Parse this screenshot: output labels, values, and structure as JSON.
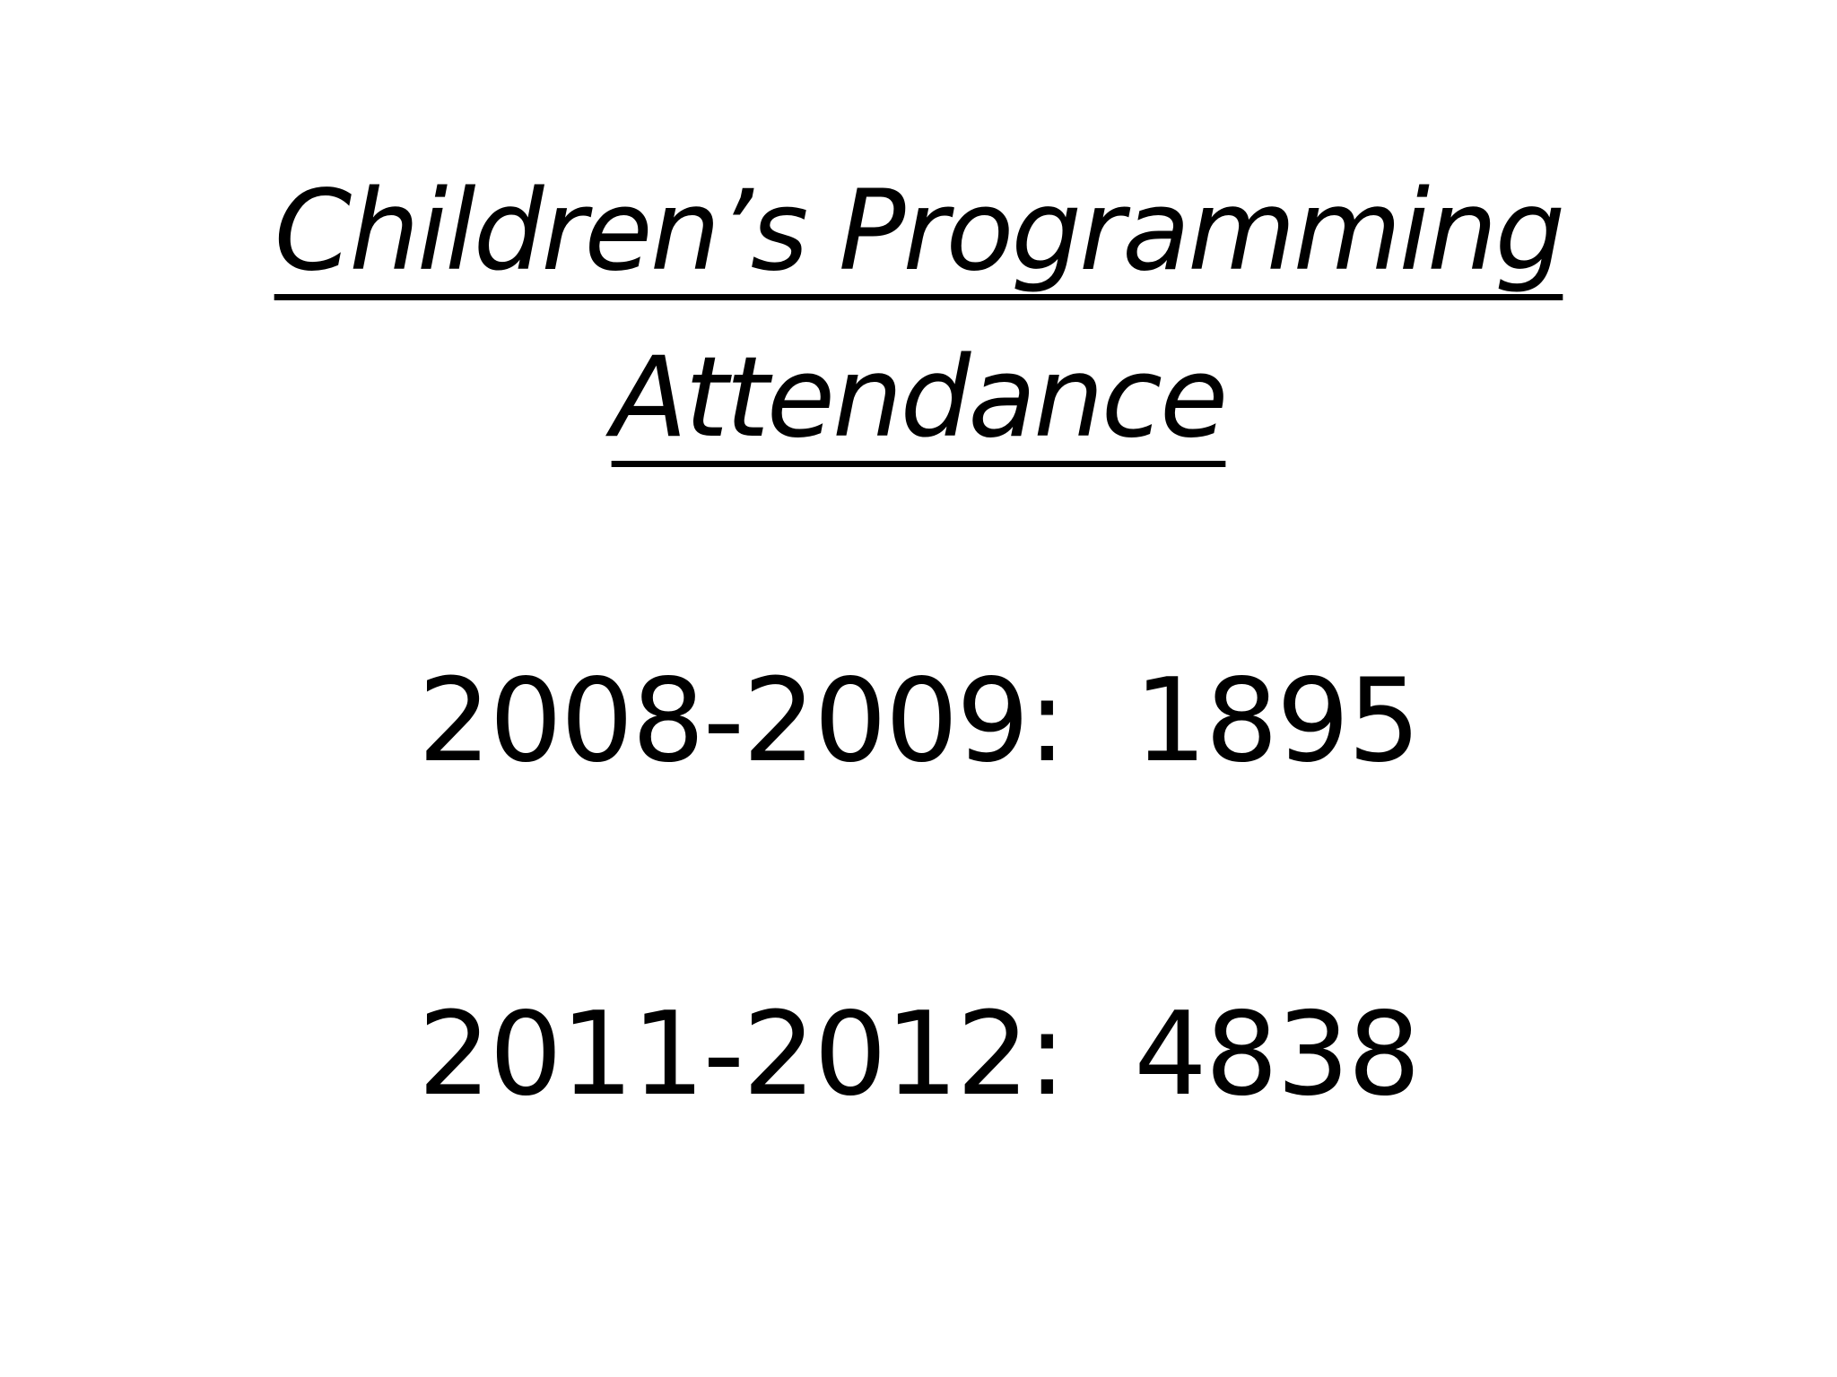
{
  "slide": {
    "title_line_1": "Children’s Programming",
    "title_line_2": "Attendance",
    "stats": [
      {
        "period": "2008-2009:",
        "count": "1895"
      },
      {
        "period": "2011-2012:",
        "count": "4838"
      }
    ]
  }
}
